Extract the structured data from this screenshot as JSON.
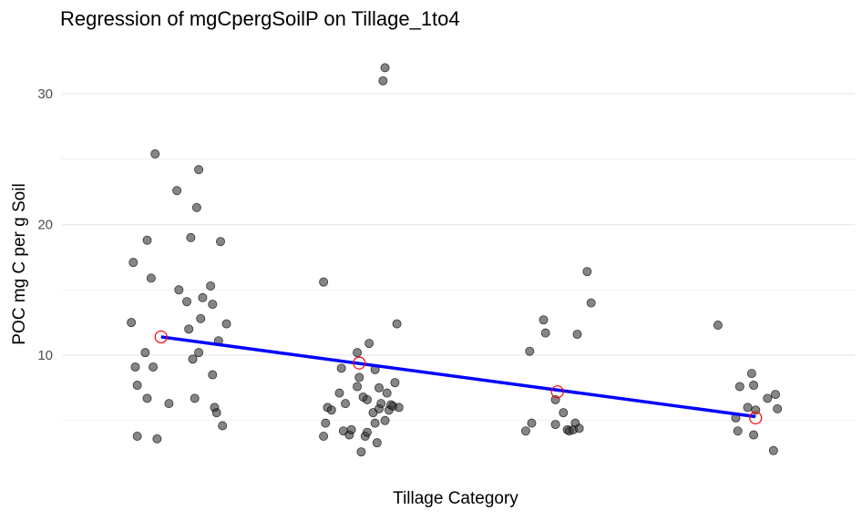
{
  "chart_data": {
    "type": "scatter",
    "title": "Regression of mgCpergSoilP on Tillage_1to4",
    "xlabel": "Tillage Category",
    "ylabel": "POC mg C per g Soil",
    "xlim": [
      0.5,
      4.5
    ],
    "ylim": [
      1.5,
      33
    ],
    "y_ticks": [
      10,
      20,
      30
    ],
    "y_tick_labels": [
      "10",
      "20",
      "30"
    ],
    "x_ticks_shown": false,
    "grid": "horizontal",
    "colors": {
      "points": "#333333",
      "fit_line": "#0000ff",
      "group_means": "#ff0000",
      "grid": "#ebebeb"
    },
    "points": [
      {
        "x": 0.85,
        "y": 12.5
      },
      {
        "x": 0.86,
        "y": 17.1
      },
      {
        "x": 0.87,
        "y": 9.1
      },
      {
        "x": 0.88,
        "y": 7.7
      },
      {
        "x": 0.88,
        "y": 3.8
      },
      {
        "x": 0.92,
        "y": 10.2
      },
      {
        "x": 0.93,
        "y": 6.7
      },
      {
        "x": 0.93,
        "y": 18.8
      },
      {
        "x": 0.95,
        "y": 15.9
      },
      {
        "x": 0.96,
        "y": 9.1
      },
      {
        "x": 0.97,
        "y": 25.4
      },
      {
        "x": 0.98,
        "y": 3.6
      },
      {
        "x": 1.04,
        "y": 6.3
      },
      {
        "x": 1.08,
        "y": 22.6
      },
      {
        "x": 1.09,
        "y": 15.0
      },
      {
        "x": 1.13,
        "y": 14.1
      },
      {
        "x": 1.14,
        "y": 12.0
      },
      {
        "x": 1.15,
        "y": 19.0
      },
      {
        "x": 1.16,
        "y": 9.7
      },
      {
        "x": 1.17,
        "y": 6.7
      },
      {
        "x": 1.18,
        "y": 21.3
      },
      {
        "x": 1.19,
        "y": 10.2
      },
      {
        "x": 1.19,
        "y": 24.2
      },
      {
        "x": 1.2,
        "y": 12.8
      },
      {
        "x": 1.21,
        "y": 14.4
      },
      {
        "x": 1.25,
        "y": 15.3
      },
      {
        "x": 1.26,
        "y": 13.9
      },
      {
        "x": 1.26,
        "y": 8.5
      },
      {
        "x": 1.27,
        "y": 6.0
      },
      {
        "x": 1.28,
        "y": 5.6
      },
      {
        "x": 1.29,
        "y": 11.1
      },
      {
        "x": 1.3,
        "y": 18.7
      },
      {
        "x": 1.31,
        "y": 4.6
      },
      {
        "x": 1.33,
        "y": 12.4
      },
      {
        "x": 1.82,
        "y": 15.6
      },
      {
        "x": 1.82,
        "y": 3.8
      },
      {
        "x": 1.83,
        "y": 4.8
      },
      {
        "x": 1.84,
        "y": 6.0
      },
      {
        "x": 1.86,
        "y": 5.8
      },
      {
        "x": 1.9,
        "y": 7.1
      },
      {
        "x": 1.91,
        "y": 9.0
      },
      {
        "x": 1.92,
        "y": 4.2
      },
      {
        "x": 1.93,
        "y": 6.3
      },
      {
        "x": 1.95,
        "y": 3.9
      },
      {
        "x": 1.96,
        "y": 4.3
      },
      {
        "x": 1.99,
        "y": 10.2
      },
      {
        "x": 1.99,
        "y": 7.6
      },
      {
        "x": 2.0,
        "y": 8.3
      },
      {
        "x": 2.01,
        "y": 2.6
      },
      {
        "x": 2.02,
        "y": 6.8
      },
      {
        "x": 2.03,
        "y": 3.8
      },
      {
        "x": 2.04,
        "y": 6.6
      },
      {
        "x": 2.04,
        "y": 4.1
      },
      {
        "x": 2.05,
        "y": 10.9
      },
      {
        "x": 2.07,
        "y": 5.6
      },
      {
        "x": 2.08,
        "y": 8.9
      },
      {
        "x": 2.08,
        "y": 4.8
      },
      {
        "x": 2.09,
        "y": 3.3
      },
      {
        "x": 2.1,
        "y": 5.9
      },
      {
        "x": 2.1,
        "y": 7.5
      },
      {
        "x": 2.11,
        "y": 6.3
      },
      {
        "x": 2.12,
        "y": 31.0
      },
      {
        "x": 2.13,
        "y": 32.0
      },
      {
        "x": 2.13,
        "y": 5.0
      },
      {
        "x": 2.14,
        "y": 7.1
      },
      {
        "x": 2.15,
        "y": 5.8
      },
      {
        "x": 2.16,
        "y": 6.2
      },
      {
        "x": 2.17,
        "y": 6.1
      },
      {
        "x": 2.18,
        "y": 7.9
      },
      {
        "x": 2.19,
        "y": 12.4
      },
      {
        "x": 2.2,
        "y": 6.0
      },
      {
        "x": 2.84,
        "y": 4.2
      },
      {
        "x": 2.86,
        "y": 10.3
      },
      {
        "x": 2.87,
        "y": 4.8
      },
      {
        "x": 2.93,
        "y": 12.7
      },
      {
        "x": 2.94,
        "y": 11.7
      },
      {
        "x": 2.99,
        "y": 6.6
      },
      {
        "x": 2.99,
        "y": 4.7
      },
      {
        "x": 3.03,
        "y": 5.6
      },
      {
        "x": 3.05,
        "y": 4.3
      },
      {
        "x": 3.06,
        "y": 4.2
      },
      {
        "x": 3.08,
        "y": 4.3
      },
      {
        "x": 3.09,
        "y": 4.8
      },
      {
        "x": 3.1,
        "y": 11.6
      },
      {
        "x": 3.11,
        "y": 4.4
      },
      {
        "x": 3.15,
        "y": 16.4
      },
      {
        "x": 3.17,
        "y": 14.0
      },
      {
        "x": 3.81,
        "y": 12.3
      },
      {
        "x": 3.9,
        "y": 5.2
      },
      {
        "x": 3.91,
        "y": 4.2
      },
      {
        "x": 3.92,
        "y": 7.6
      },
      {
        "x": 3.96,
        "y": 6.0
      },
      {
        "x": 3.98,
        "y": 8.6
      },
      {
        "x": 3.99,
        "y": 3.9
      },
      {
        "x": 4.0,
        "y": 5.8
      },
      {
        "x": 3.99,
        "y": 7.7
      },
      {
        "x": 4.06,
        "y": 6.7
      },
      {
        "x": 4.09,
        "y": 2.7
      },
      {
        "x": 4.1,
        "y": 7.0
      },
      {
        "x": 4.11,
        "y": 5.9
      }
    ],
    "group_means": [
      {
        "x": 1,
        "y": 11.4
      },
      {
        "x": 2,
        "y": 9.4
      },
      {
        "x": 3,
        "y": 7.2
      },
      {
        "x": 4,
        "y": 5.2
      }
    ],
    "fit_line": {
      "x": [
        1,
        4
      ],
      "y": [
        11.4,
        5.3
      ]
    }
  }
}
